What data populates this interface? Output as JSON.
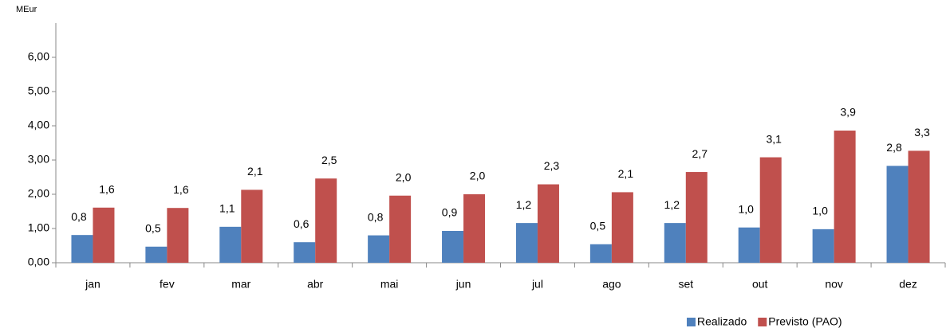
{
  "chart_data": {
    "type": "bar",
    "y_label": "MEur",
    "categories": [
      "jan",
      "fev",
      "mar",
      "abr",
      "mai",
      "jun",
      "jul",
      "ago",
      "set",
      "out",
      "nov",
      "dez"
    ],
    "series": [
      {
        "name": "Realizado",
        "color": "#4f81bd",
        "values": [
          0.81,
          0.47,
          1.05,
          0.6,
          0.8,
          0.93,
          1.16,
          0.54,
          1.16,
          1.03,
          0.98,
          2.83
        ],
        "value_labels": [
          "0,8",
          "0,5",
          "1,1",
          "0,6",
          "0,8",
          "0,9",
          "1,2",
          "0,5",
          "1,2",
          "1,0",
          "1,0",
          "2,8"
        ]
      },
      {
        "name": "Previsto (PAO)",
        "color": "#c0504d",
        "values": [
          1.61,
          1.6,
          2.13,
          2.46,
          1.96,
          2.0,
          2.29,
          2.06,
          2.65,
          3.08,
          3.86,
          3.27
        ],
        "value_labels": [
          "1,6",
          "1,6",
          "2,1",
          "2,5",
          "2,0",
          "2,0",
          "2,3",
          "2,1",
          "2,7",
          "3,1",
          "3,9",
          "3,3"
        ]
      }
    ],
    "ylim": [
      0,
      7
    ],
    "yticks": [
      {
        "value": 0,
        "label": "0,00"
      },
      {
        "value": 1,
        "label": "1,00"
      },
      {
        "value": 2,
        "label": "2,00"
      },
      {
        "value": 3,
        "label": "3,00"
      },
      {
        "value": 4,
        "label": "4,00"
      },
      {
        "value": 5,
        "label": "5,00"
      },
      {
        "value": 6,
        "label": "6,00"
      }
    ],
    "legend": "bottom-right"
  }
}
